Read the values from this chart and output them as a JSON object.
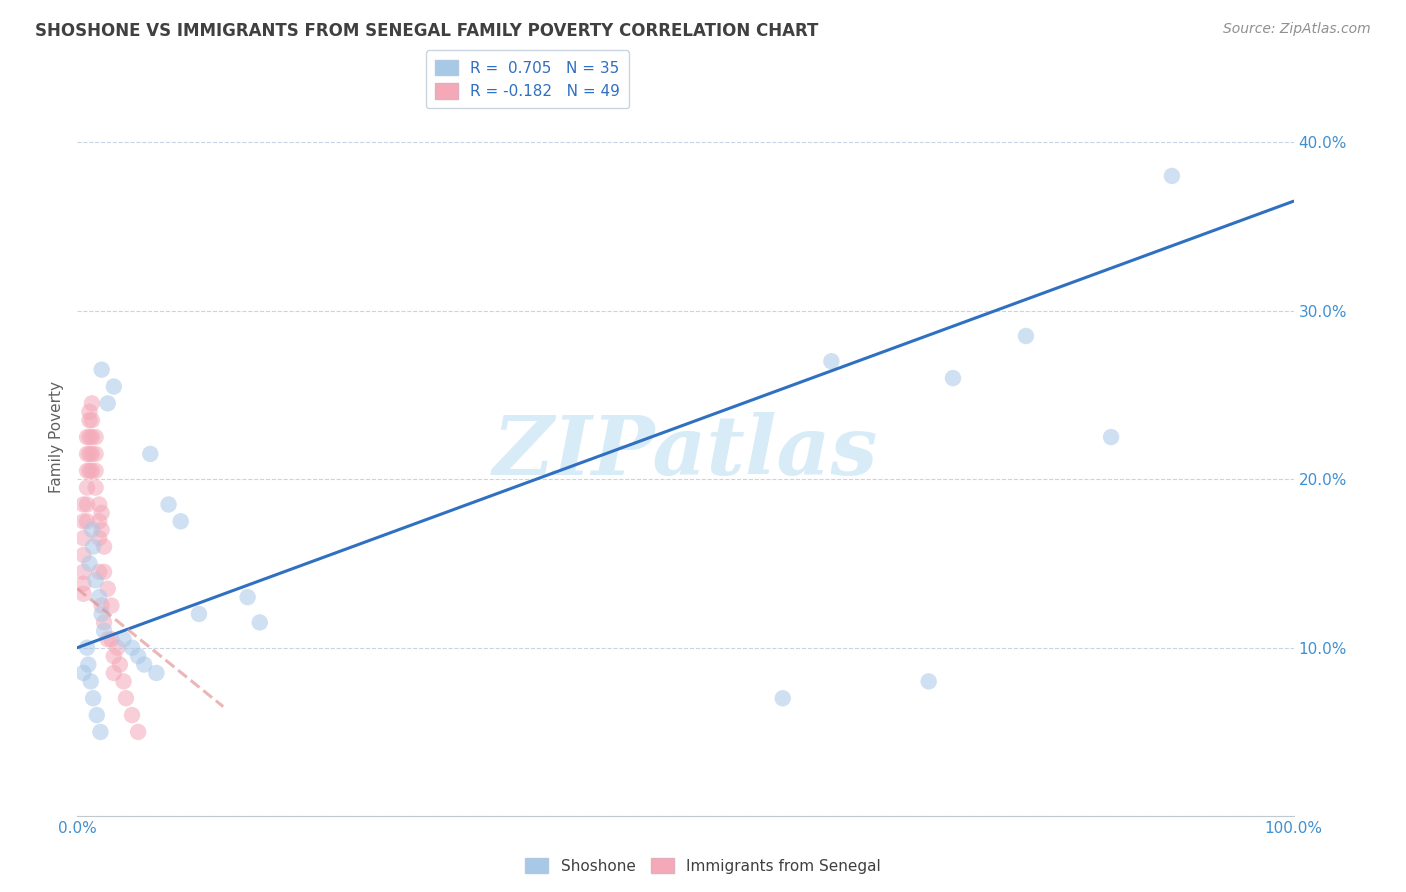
{
  "title": "SHOSHONE VS IMMIGRANTS FROM SENEGAL FAMILY POVERTY CORRELATION CHART",
  "source": "Source: ZipAtlas.com",
  "ylabel": "Family Poverty",
  "watermark": "ZIPatlas",
  "legend_label_shoshone": "R =  0.705   N = 35",
  "legend_label_senegal": "R = -0.182   N = 49",
  "shoshone_x": [
    0.02,
    0.03,
    0.025,
    0.06,
    0.075,
    0.085,
    0.012,
    0.013,
    0.01,
    0.015,
    0.018,
    0.02,
    0.022,
    0.038,
    0.045,
    0.05,
    0.055,
    0.065,
    0.1,
    0.14,
    0.15,
    0.62,
    0.72,
    0.78,
    0.85,
    0.9,
    0.008,
    0.009,
    0.011,
    0.013,
    0.016,
    0.019,
    0.58,
    0.7,
    0.005
  ],
  "shoshone_y": [
    0.265,
    0.255,
    0.245,
    0.215,
    0.185,
    0.175,
    0.17,
    0.16,
    0.15,
    0.14,
    0.13,
    0.12,
    0.11,
    0.105,
    0.1,
    0.095,
    0.09,
    0.085,
    0.12,
    0.13,
    0.115,
    0.27,
    0.26,
    0.285,
    0.225,
    0.38,
    0.1,
    0.09,
    0.08,
    0.07,
    0.06,
    0.05,
    0.07,
    0.08,
    0.085
  ],
  "senegal_x": [
    0.005,
    0.005,
    0.005,
    0.005,
    0.005,
    0.005,
    0.005,
    0.008,
    0.008,
    0.008,
    0.008,
    0.008,
    0.008,
    0.01,
    0.01,
    0.01,
    0.01,
    0.01,
    0.012,
    0.012,
    0.012,
    0.012,
    0.012,
    0.015,
    0.015,
    0.015,
    0.015,
    0.018,
    0.018,
    0.018,
    0.018,
    0.02,
    0.02,
    0.02,
    0.022,
    0.022,
    0.022,
    0.025,
    0.025,
    0.028,
    0.028,
    0.03,
    0.03,
    0.033,
    0.035,
    0.038,
    0.04,
    0.045,
    0.05
  ],
  "senegal_y": [
    0.185,
    0.175,
    0.165,
    0.155,
    0.145,
    0.138,
    0.132,
    0.225,
    0.215,
    0.205,
    0.195,
    0.185,
    0.175,
    0.24,
    0.235,
    0.225,
    0.215,
    0.205,
    0.245,
    0.235,
    0.225,
    0.215,
    0.205,
    0.225,
    0.215,
    0.205,
    0.195,
    0.185,
    0.175,
    0.165,
    0.145,
    0.18,
    0.17,
    0.125,
    0.16,
    0.145,
    0.115,
    0.135,
    0.105,
    0.125,
    0.105,
    0.095,
    0.085,
    0.1,
    0.09,
    0.08,
    0.07,
    0.06,
    0.05
  ],
  "shoshone_line_x0": 0.0,
  "shoshone_line_y0": 0.1,
  "shoshone_line_x1": 1.0,
  "shoshone_line_y1": 0.365,
  "senegal_line_x0": 0.0,
  "senegal_line_y0": 0.135,
  "senegal_line_x1": 0.12,
  "senegal_line_y1": 0.065,
  "xlim": [
    0.0,
    1.0
  ],
  "ylim": [
    0.0,
    0.45
  ],
  "x_edge_labels": [
    "0.0%",
    "100.0%"
  ],
  "yticks": [
    0.0,
    0.1,
    0.2,
    0.3,
    0.4
  ],
  "yticklabels_right": [
    "",
    "10.0%",
    "20.0%",
    "30.0%",
    "40.0%"
  ],
  "xtick_positions": [
    0.0,
    0.1,
    0.2,
    0.3,
    0.4,
    0.5,
    0.6,
    0.7,
    0.8,
    0.9,
    1.0
  ],
  "shoshone_color": "#a8c8e8",
  "senegal_color": "#f4a8b8",
  "shoshone_line_color": "#3070c0",
  "senegal_line_color": "#e09090",
  "background_color": "#ffffff",
  "grid_color": "#c8d4e4",
  "title_color": "#404040",
  "source_color": "#909090",
  "axis_tick_color": "#4090d0",
  "watermark_color": "#d8ecf8",
  "marker_size": 140,
  "marker_alpha": 0.55,
  "line_width": 2.2
}
